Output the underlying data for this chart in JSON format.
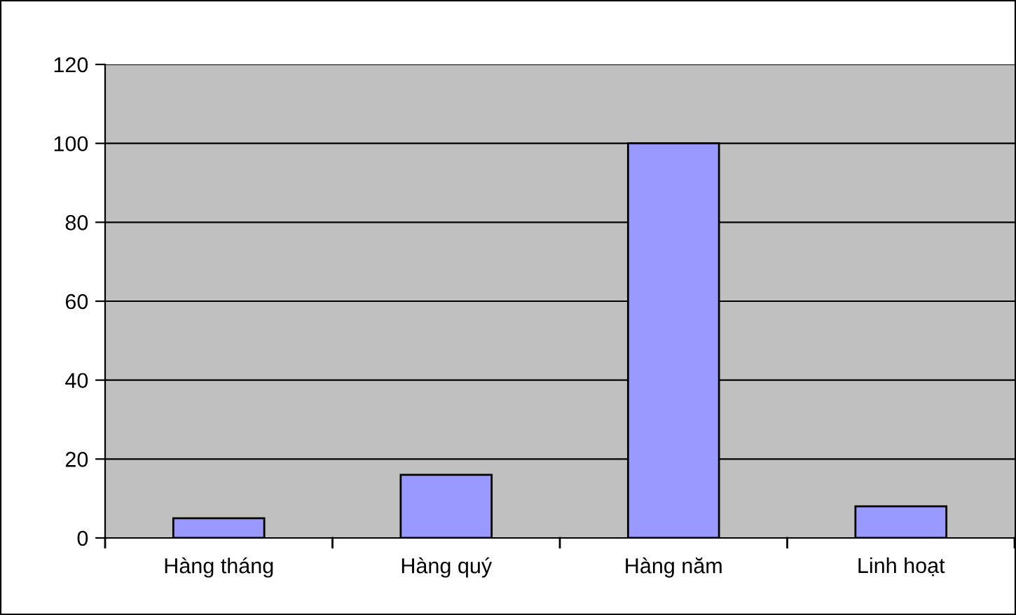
{
  "chart_data": {
    "type": "bar",
    "categories": [
      "Hàng tháng",
      "Hàng quý",
      "Hàng năm",
      "Linh hoạt"
    ],
    "values": [
      5,
      16,
      100,
      8
    ],
    "color": "#9999ff",
    "ylim": [
      0,
      120
    ],
    "yticks": [
      0,
      20,
      40,
      60,
      80,
      100,
      120
    ],
    "grid": "y",
    "legend": false
  }
}
